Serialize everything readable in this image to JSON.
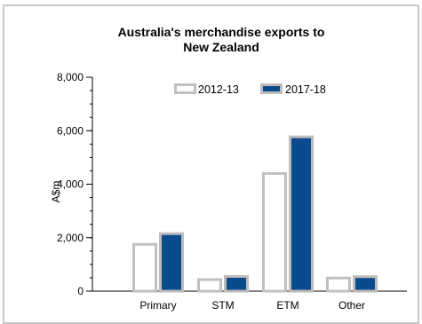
{
  "chart_data": {
    "type": "bar",
    "title_lines": [
      "Australia's merchandise exports to",
      "New Zealand"
    ],
    "ylabel": "A$m",
    "xlabel": "",
    "categories": [
      "Primary",
      "STM",
      "ETM",
      "Other"
    ],
    "series": [
      {
        "name": "2012-13",
        "values": [
          1800,
          480,
          4450,
          540
        ],
        "fill": "#ffffff",
        "stroke": "#c0c0c0"
      },
      {
        "name": "2017-18",
        "values": [
          2200,
          600,
          5820,
          590
        ],
        "fill": "#0b4a8b",
        "stroke": "#bcbcbc"
      }
    ],
    "ylim": [
      0,
      8000
    ],
    "yticks": [
      0,
      2000,
      4000,
      6000,
      8000
    ],
    "ytick_labels": [
      "0",
      "2,000",
      "4,000",
      "6,000",
      "8,000"
    ],
    "minor_step": 500,
    "grid": false,
    "legend_position": "top-center"
  }
}
